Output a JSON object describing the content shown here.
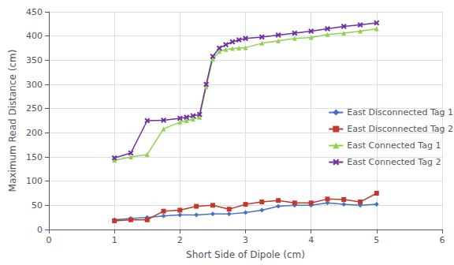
{
  "chart_data": {
    "type": "line",
    "xlabel": "Short Side of Dipole (cm)",
    "ylabel": "Maximum Read Distance (cm)",
    "xlim": [
      0,
      6
    ],
    "ylim": [
      0,
      450
    ],
    "xticks": [
      0,
      1,
      2,
      3,
      4,
      5,
      6
    ],
    "yticks": [
      0,
      50,
      100,
      150,
      200,
      250,
      300,
      350,
      400,
      450
    ],
    "grid": true,
    "legend": "right",
    "series": [
      {
        "name": "East Disconnected Tag 1",
        "color": "#4472C4",
        "marker": "diamond",
        "x": [
          1.0,
          1.25,
          1.5,
          1.75,
          2.0,
          2.25,
          2.5,
          2.75,
          3.0,
          3.25,
          3.5,
          3.75,
          4.0,
          4.25,
          4.5,
          4.75,
          5.0
        ],
        "values": [
          20,
          23,
          25,
          28,
          30,
          30,
          32,
          32,
          35,
          40,
          48,
          50,
          50,
          55,
          52,
          50,
          52
        ]
      },
      {
        "name": "East Disconnected Tag 2",
        "color": "#C0392B",
        "marker": "square",
        "x": [
          1.0,
          1.25,
          1.5,
          1.75,
          2.0,
          2.25,
          2.5,
          2.75,
          3.0,
          3.25,
          3.5,
          3.75,
          4.0,
          4.25,
          4.5,
          4.75,
          5.0
        ],
        "values": [
          18,
          20,
          20,
          38,
          40,
          48,
          50,
          42,
          52,
          57,
          60,
          55,
          55,
          63,
          62,
          57,
          75
        ]
      },
      {
        "name": "East Connected Tag 1",
        "color": "#92D050",
        "marker": "triangle",
        "x": [
          1.0,
          1.25,
          1.5,
          1.75,
          2.0,
          2.1,
          2.2,
          2.3,
          2.4,
          2.5,
          2.6,
          2.7,
          2.8,
          2.9,
          3.0,
          3.25,
          3.5,
          3.75,
          4.0,
          4.25,
          4.5,
          4.75,
          5.0
        ],
        "values": [
          143,
          150,
          155,
          208,
          222,
          225,
          228,
          232,
          295,
          352,
          368,
          372,
          374,
          375,
          376,
          385,
          390,
          395,
          397,
          403,
          406,
          410,
          415
        ]
      },
      {
        "name": "East Connected Tag 2",
        "color": "#7030A0",
        "marker": "x",
        "x": [
          1.0,
          1.25,
          1.5,
          1.75,
          2.0,
          2.1,
          2.2,
          2.3,
          2.4,
          2.5,
          2.6,
          2.7,
          2.8,
          2.9,
          3.0,
          3.25,
          3.5,
          3.75,
          4.0,
          4.25,
          4.5,
          4.75,
          5.0
        ],
        "values": [
          148,
          158,
          225,
          226,
          230,
          232,
          235,
          238,
          300,
          358,
          375,
          382,
          388,
          392,
          395,
          398,
          402,
          406,
          410,
          415,
          420,
          423,
          427
        ]
      }
    ]
  }
}
